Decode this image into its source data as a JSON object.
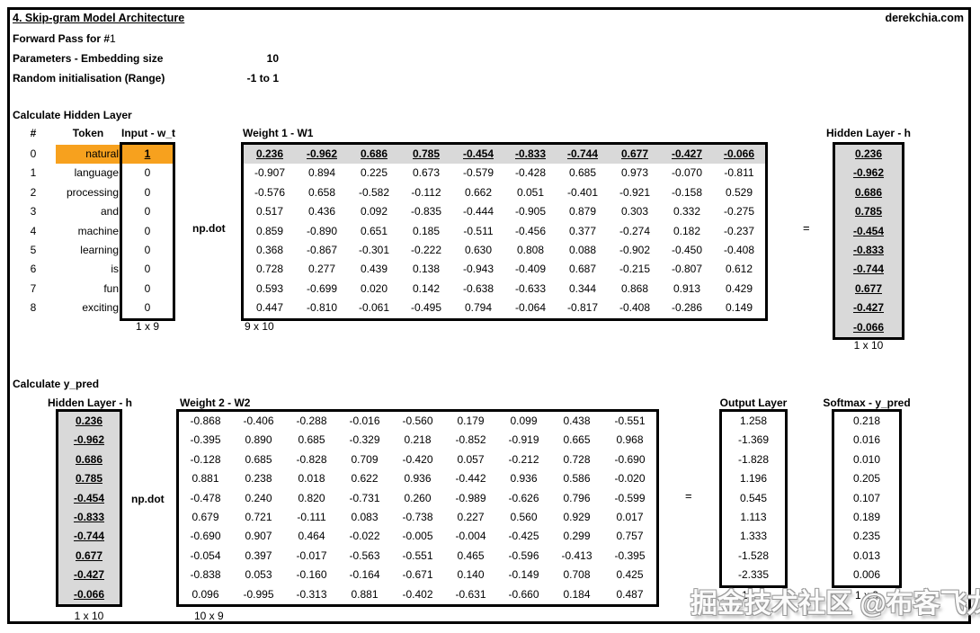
{
  "page": {
    "title": "4. Skip-gram Model Architecture",
    "site": "derekchia.com",
    "forward_label": "Forward Pass for #",
    "forward_value": "1",
    "embed_label": "Parameters - Embedding size",
    "embed_value": "10",
    "rand_label": "Random initialisation (Range)",
    "rand_value": "-1 to 1"
  },
  "colors": {
    "highlight_orange": "#f7a11e",
    "cell_gray": "#d9d9d9"
  },
  "s1": {
    "heading": "Calculate Hidden Layer",
    "col_hash": "#",
    "col_token": "Token",
    "col_input": "Input - w_t",
    "w1_label": "Weight 1 - W1",
    "hidden_label": "Hidden Layer - h",
    "npdot": "np.dot",
    "eq": "=",
    "idx": [
      "0",
      "1",
      "2",
      "3",
      "4",
      "5",
      "6",
      "7",
      "8"
    ],
    "tokens": [
      "natural",
      "language",
      "processing",
      "and",
      "machine",
      "learning",
      "is",
      "fun",
      "exciting"
    ],
    "inputs": [
      "1",
      "0",
      "0",
      "0",
      "0",
      "0",
      "0",
      "0",
      "0"
    ],
    "input_dim": "1 x 9",
    "w1_dim": "9 x 10",
    "hidden_dim": "1 x 10",
    "w1": [
      [
        "0.236",
        "-0.962",
        "0.686",
        "0.785",
        "-0.454",
        "-0.833",
        "-0.744",
        "0.677",
        "-0.427",
        "-0.066"
      ],
      [
        "-0.907",
        "0.894",
        "0.225",
        "0.673",
        "-0.579",
        "-0.428",
        "0.685",
        "0.973",
        "-0.070",
        "-0.811"
      ],
      [
        "-0.576",
        "0.658",
        "-0.582",
        "-0.112",
        "0.662",
        "0.051",
        "-0.401",
        "-0.921",
        "-0.158",
        "0.529"
      ],
      [
        "0.517",
        "0.436",
        "0.092",
        "-0.835",
        "-0.444",
        "-0.905",
        "0.879",
        "0.303",
        "0.332",
        "-0.275"
      ],
      [
        "0.859",
        "-0.890",
        "0.651",
        "0.185",
        "-0.511",
        "-0.456",
        "0.377",
        "-0.274",
        "0.182",
        "-0.237"
      ],
      [
        "0.368",
        "-0.867",
        "-0.301",
        "-0.222",
        "0.630",
        "0.808",
        "0.088",
        "-0.902",
        "-0.450",
        "-0.408"
      ],
      [
        "0.728",
        "0.277",
        "0.439",
        "0.138",
        "-0.943",
        "-0.409",
        "0.687",
        "-0.215",
        "-0.807",
        "0.612"
      ],
      [
        "0.593",
        "-0.699",
        "0.020",
        "0.142",
        "-0.638",
        "-0.633",
        "0.344",
        "0.868",
        "0.913",
        "0.429"
      ],
      [
        "0.447",
        "-0.810",
        "-0.061",
        "-0.495",
        "0.794",
        "-0.064",
        "-0.817",
        "-0.408",
        "-0.286",
        "0.149"
      ]
    ],
    "hidden": [
      "0.236",
      "-0.962",
      "0.686",
      "0.785",
      "-0.454",
      "-0.833",
      "-0.744",
      "0.677",
      "-0.427",
      "-0.066"
    ]
  },
  "s2": {
    "heading": "Calculate y_pred",
    "hidden_label": "Hidden Layer - h",
    "w2_label": "Weight 2 - W2",
    "output_label": "Output Layer",
    "softmax_label": "Softmax - y_pred",
    "npdot": "np.dot",
    "eq": "=",
    "hidden": [
      "0.236",
      "-0.962",
      "0.686",
      "0.785",
      "-0.454",
      "-0.833",
      "-0.744",
      "0.677",
      "-0.427",
      "-0.066"
    ],
    "hidden_dim": "1 x 10",
    "w2_dim": "10 x 9",
    "output_dim": "1 x 9",
    "softmax_dim": "1 x 9",
    "w2": [
      [
        "-0.868",
        "-0.406",
        "-0.288",
        "-0.016",
        "-0.560",
        "0.179",
        "0.099",
        "0.438",
        "-0.551"
      ],
      [
        "-0.395",
        "0.890",
        "0.685",
        "-0.329",
        "0.218",
        "-0.852",
        "-0.919",
        "0.665",
        "0.968"
      ],
      [
        "-0.128",
        "0.685",
        "-0.828",
        "0.709",
        "-0.420",
        "0.057",
        "-0.212",
        "0.728",
        "-0.690"
      ],
      [
        "0.881",
        "0.238",
        "0.018",
        "0.622",
        "0.936",
        "-0.442",
        "0.936",
        "0.586",
        "-0.020"
      ],
      [
        "-0.478",
        "0.240",
        "0.820",
        "-0.731",
        "0.260",
        "-0.989",
        "-0.626",
        "0.796",
        "-0.599"
      ],
      [
        "0.679",
        "0.721",
        "-0.111",
        "0.083",
        "-0.738",
        "0.227",
        "0.560",
        "0.929",
        "0.017"
      ],
      [
        "-0.690",
        "0.907",
        "0.464",
        "-0.022",
        "-0.005",
        "-0.004",
        "-0.425",
        "0.299",
        "0.757"
      ],
      [
        "-0.054",
        "0.397",
        "-0.017",
        "-0.563",
        "-0.551",
        "0.465",
        "-0.596",
        "-0.413",
        "-0.395"
      ],
      [
        "-0.838",
        "0.053",
        "-0.160",
        "-0.164",
        "-0.671",
        "0.140",
        "-0.149",
        "0.708",
        "0.425"
      ],
      [
        "0.096",
        "-0.995",
        "-0.313",
        "0.881",
        "-0.402",
        "-0.631",
        "-0.660",
        "0.184",
        "0.487"
      ]
    ],
    "output": [
      "1.258",
      "-1.369",
      "-1.828",
      "1.196",
      "0.545",
      "1.113",
      "1.333",
      "-1.528",
      "-2.335"
    ],
    "softmax": [
      "0.218",
      "0.016",
      "0.010",
      "0.205",
      "0.107",
      "0.189",
      "0.235",
      "0.013",
      "0.006"
    ]
  },
  "watermark": {
    "text": "掘金技术社区 @布客飞龙"
  }
}
